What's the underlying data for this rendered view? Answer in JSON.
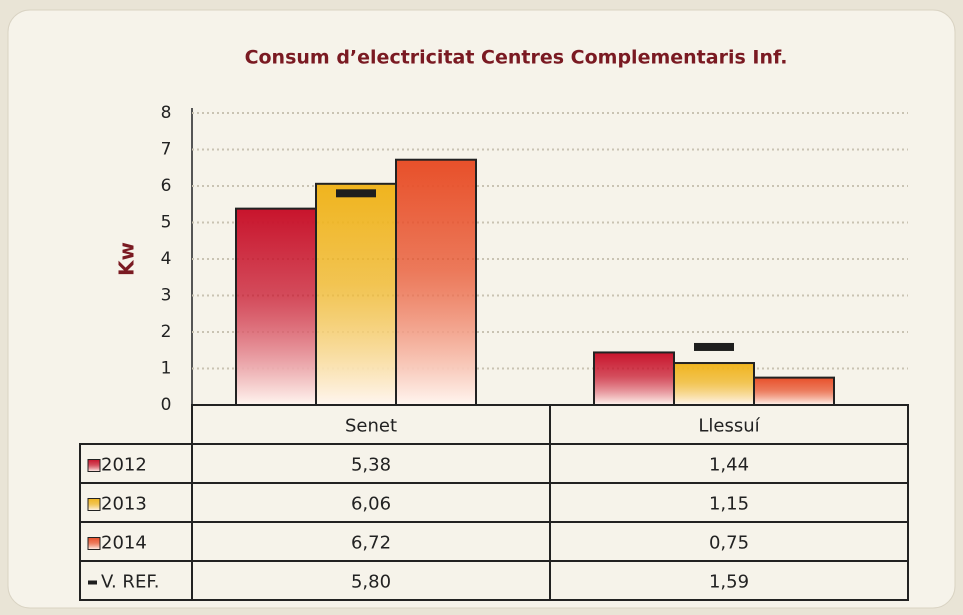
{
  "chart_data": {
    "type": "bar",
    "title": "Consum d’electricitat Centres Complementaris Inf.",
    "y_label": "Kw",
    "categories": [
      "Senet",
      "Llessuí"
    ],
    "series": [
      {
        "name": "2012",
        "color": "#c8142c",
        "values": [
          5.38,
          1.44
        ],
        "value_labels": [
          "5,38",
          "1,44"
        ]
      },
      {
        "name": "2013",
        "color": "#f0b41e",
        "values": [
          6.06,
          1.15
        ],
        "value_labels": [
          "6,06",
          "1,15"
        ]
      },
      {
        "name": "2014",
        "color": "#e8502a",
        "values": [
          6.72,
          0.75
        ],
        "value_labels": [
          "6,72",
          "0,75"
        ]
      },
      {
        "name": "V. REF.",
        "color": "#1e1e1e",
        "mark": "dash",
        "values": [
          5.8,
          1.59
        ],
        "value_labels": [
          "5,80",
          "1,59"
        ]
      }
    ],
    "ylim": [
      0,
      8
    ],
    "yticks": [
      0,
      1,
      2,
      3,
      4,
      5,
      6,
      7,
      8
    ],
    "grid": true
  }
}
